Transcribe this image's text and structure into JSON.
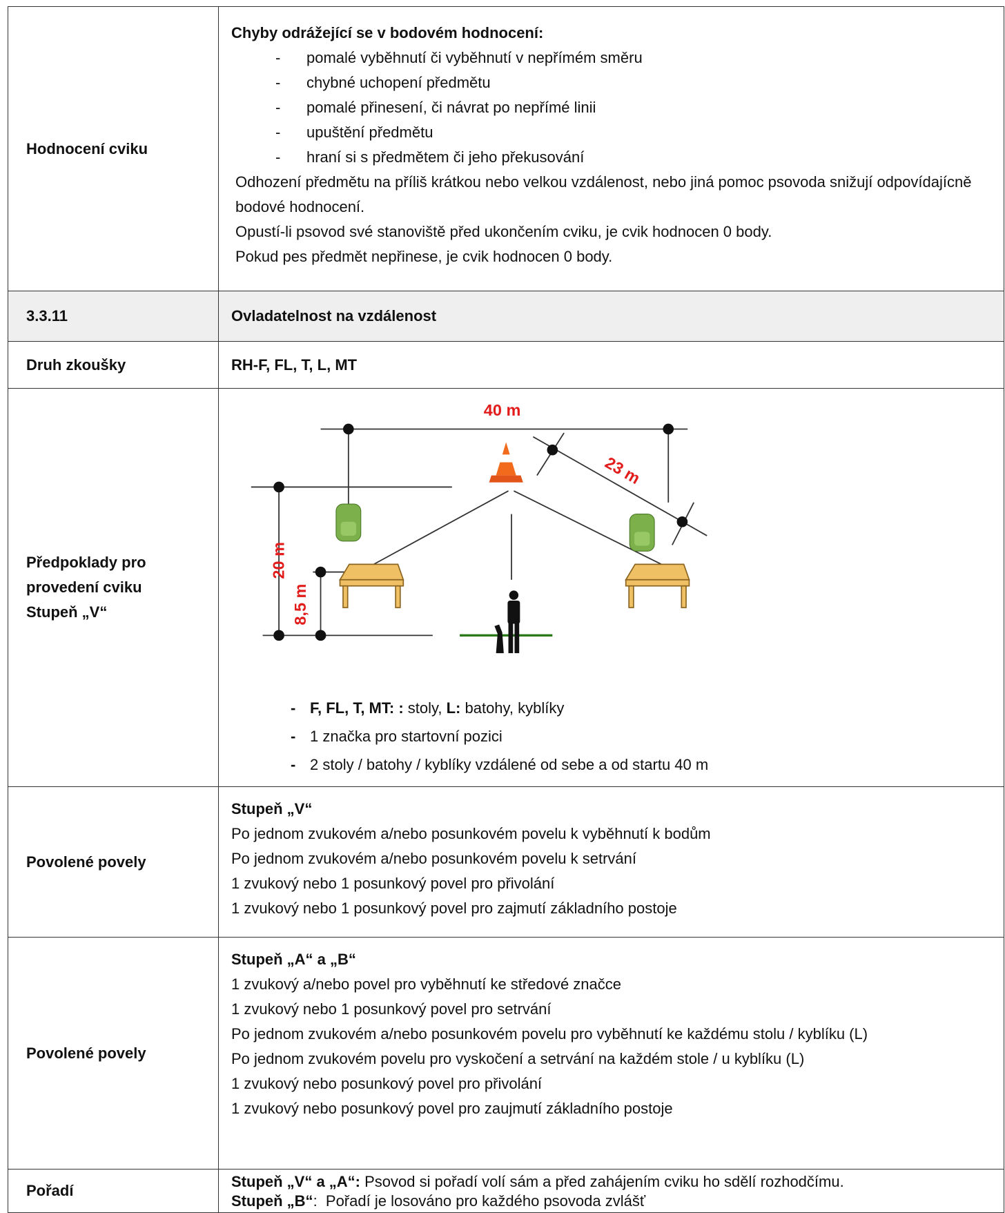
{
  "rows": [
    {
      "label": "Hodnocení cviku",
      "heading": "Chyby odrážející se v bodovém hodnocení:",
      "bullet_marker": "-",
      "bullets": [
        "pomalé vyběhnutí či vyběhnutí v nepřímém směru",
        "chybné uchopení předmětu",
        "pomalé přinesení, či návrat po nepřímé linii",
        "upuštění předmětu",
        "hraní si s předmětem či jeho překusování"
      ],
      "paragraphs": [
        "Odhození předmětu na příliš krátkou nebo velkou vzdálenost, nebo jiná pomoc psovoda snižují odpovídajícně bodové hodnocení.",
        "Opustí-li psovod své stanoviště před ukončením cviku, je cvik hodnocen 0 body.",
        "Pokud pes předmět nepřinese, je cvik hodnocen 0 body."
      ]
    },
    {
      "number": "3.3.11",
      "title": "Ovladatelnost na vzdálenost"
    },
    {
      "label": "Druh zkoušky",
      "text": "RH-F, FL, T, L, MT"
    },
    {
      "label_lines": [
        "Předpoklady pro",
        "provedení cviku",
        "Stupeň „V“"
      ],
      "diagram": {
        "width_label": "40 m",
        "diagonal_label": "23 m",
        "height_label": "20 m",
        "table_distance_label": "8,5 m"
      },
      "bullet_marker": "-",
      "bullets": [
        [
          {
            "text": "F, FL, T, MT: :",
            "bold": true
          },
          {
            "text": " stoly, "
          },
          {
            "text": "L:",
            "bold": true
          },
          {
            "text": " batohy, kyblíky"
          }
        ],
        [
          {
            "text": "1 značka pro startovní pozici"
          }
        ],
        [
          {
            "text": "2 stoly / batohy / kyblíky vzdálené od sebe a od startu 40 m"
          }
        ]
      ]
    },
    {
      "label": "Povolené povely",
      "heading": "Stupeň „V“",
      "lines": [
        "Po jednom zvukovém a/nebo posunkovém povelu k vyběhnutí k bodům",
        "Po jednom zvukovém a/nebo posunkovém povelu k setrvání",
        "1 zvukový nebo 1 posunkový povel pro přivolání",
        "1 zvukový nebo 1 posunkový povel pro zajmutí základního postoje"
      ]
    },
    {
      "label": "Povolené povely",
      "heading": "Stupeň „A“ a „B“",
      "lines": [
        "1 zvukový a/nebo povel pro vyběhnutí ke středové značce",
        "1 zvukový nebo 1 posunkový povel pro setrvání",
        "Po jednom zvukovém a/nebo posunkovém povelu pro vyběhnutí ke každému stolu / kyblíku (L)",
        "Po jednom zvukovém povelu pro vyskočení a setrvání na každém stole / u kyblíku (L)",
        "1 zvukový nebo posunkový povel pro přivolání",
        "1 zvukový nebo posunkový povel pro zaujmutí základního postoje"
      ]
    },
    {
      "label": "Pořadí",
      "segment_lines": [
        [
          {
            "text": "Stupeň „V“ a „A“:",
            "bold": true
          },
          {
            "text": " Psovod si pořadí volí sám a před zahájením cviku ho sdělí rozhodčímu."
          }
        ],
        [
          {
            "text": "Stupeň „B“",
            "bold": true
          },
          {
            "text": ":  Pořadí je losováno pro každého psovoda zvlášť"
          }
        ]
      ]
    }
  ]
}
